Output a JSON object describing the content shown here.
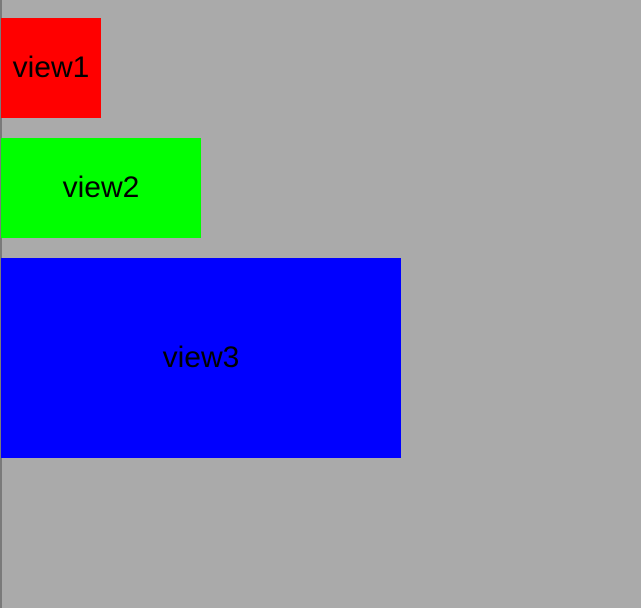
{
  "views": [
    {
      "label": "view1",
      "background": "#ff0000"
    },
    {
      "label": "view2",
      "background": "#00ff00"
    },
    {
      "label": "view3",
      "background": "#0000ff"
    }
  ],
  "canvas": {
    "background": "#aaaaaa"
  }
}
